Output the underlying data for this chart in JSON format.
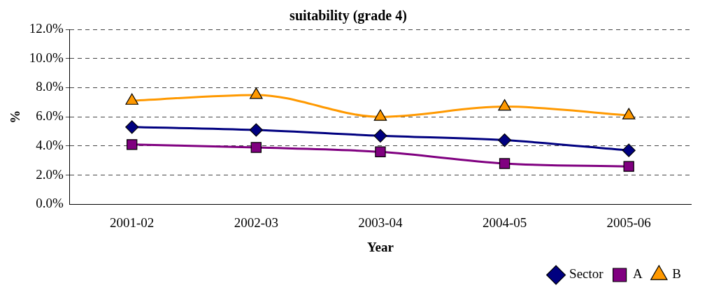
{
  "chart_data": {
    "type": "line",
    "title": "suitability (grade 4)",
    "xlabel": "Year",
    "ylabel": "%",
    "categories": [
      "2001-02",
      "2002-03",
      "2003-04",
      "2004-05",
      "2005-06"
    ],
    "series": [
      {
        "name": "Sector",
        "color": "#000080",
        "marker": "diamond",
        "values": [
          5.3,
          5.1,
          4.7,
          4.4,
          3.7
        ]
      },
      {
        "name": "A",
        "color": "#800080",
        "marker": "square",
        "values": [
          4.1,
          3.9,
          3.6,
          2.8,
          2.6
        ]
      },
      {
        "name": "B",
        "color": "#ff9900",
        "marker": "triangle",
        "values": [
          7.1,
          7.5,
          6.0,
          6.7,
          6.1
        ]
      }
    ],
    "ylim": [
      0,
      12
    ],
    "yticks": [
      {
        "value": 0,
        "label": "0.0%"
      },
      {
        "value": 2,
        "label": "2.0%"
      },
      {
        "value": 4,
        "label": "4.0%"
      },
      {
        "value": 6,
        "label": "6.0%"
      },
      {
        "value": 8,
        "label": "8.0%"
      },
      {
        "value": 10,
        "label": "10.0%"
      },
      {
        "value": 12,
        "label": "12.0%"
      }
    ],
    "grid": "y",
    "legend": "bottom right",
    "line_style": "solid"
  }
}
